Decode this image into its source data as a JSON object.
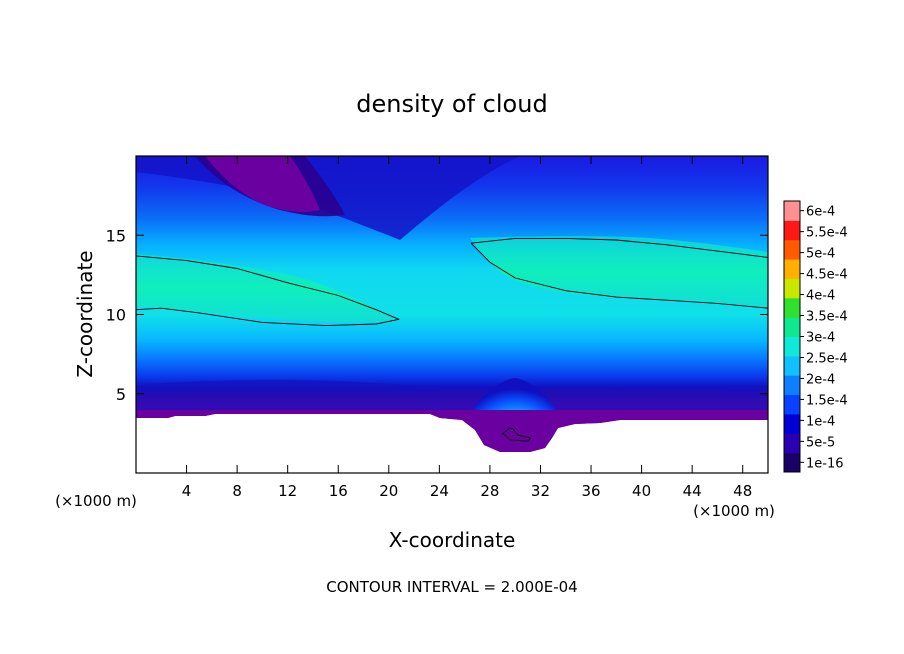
{
  "chart_data": {
    "type": "heatmap",
    "title": "density of cloud",
    "xlabel": "X-coordinate",
    "ylabel": "Z-coordinate",
    "x_unit_label": "(×1000 m)",
    "y_unit_label": "(×1000 m)",
    "xlim": [
      0,
      50
    ],
    "ylim": [
      0,
      20
    ],
    "x_ticks": [
      4,
      8,
      12,
      16,
      20,
      24,
      28,
      32,
      36,
      40,
      44,
      48
    ],
    "y_ticks": [
      5,
      10,
      15
    ],
    "footer": "CONTOUR INTERVAL = 2.000E-04",
    "colorbar": {
      "labels": [
        "6e-4",
        "5.5e-4",
        "5e-4",
        "4.5e-4",
        "4e-4",
        "3.5e-4",
        "3e-4",
        "2.5e-4",
        "2e-4",
        "1.5e-4",
        "1e-4",
        "5e-5",
        "1e-16"
      ],
      "colors": [
        "#1a0066",
        "#2a00b0",
        "#0000d6",
        "#0a40ff",
        "#0e80ff",
        "#10c0ff",
        "#10e8d8",
        "#10e890",
        "#30e030",
        "#c8e800",
        "#ffb000",
        "#ff5a00",
        "#ff1818",
        "#ff9090"
      ]
    },
    "contour_lines": [
      {
        "name": "",
        "points": [
          [
            0,
            13.7
          ],
          [
            4,
            13.4
          ],
          [
            8,
            12.9
          ],
          [
            12,
            12.0
          ],
          [
            16,
            11.2
          ],
          [
            19,
            10.3
          ],
          [
            20.8,
            9.7
          ],
          [
            19,
            9.4
          ],
          [
            15,
            9.3
          ],
          [
            10,
            9.5
          ],
          [
            5,
            10.1
          ],
          [
            2,
            10.4
          ],
          [
            0,
            10.3
          ]
        ]
      },
      {
        "name": "",
        "points": [
          [
            26.5,
            14.5
          ],
          [
            30,
            14.8
          ],
          [
            34,
            14.8
          ],
          [
            38,
            14.7
          ],
          [
            42,
            14.4
          ],
          [
            46,
            14.0
          ],
          [
            50,
            13.6
          ],
          [
            50,
            10.4
          ],
          [
            46,
            10.7
          ],
          [
            42,
            10.9
          ],
          [
            38,
            11.1
          ],
          [
            34,
            11.5
          ],
          [
            30,
            12.3
          ],
          [
            28,
            13.3
          ],
          [
            26.5,
            14.5
          ]
        ]
      },
      {
        "name": "",
        "points": [
          [
            29.5,
            2.8
          ],
          [
            29.0,
            2.5
          ],
          [
            29.6,
            2.1
          ],
          [
            31.0,
            2.0
          ],
          [
            31.2,
            2.2
          ],
          [
            30.2,
            2.4
          ],
          [
            29.8,
            2.8
          ],
          [
            29.5,
            2.8
          ]
        ]
      }
    ]
  }
}
